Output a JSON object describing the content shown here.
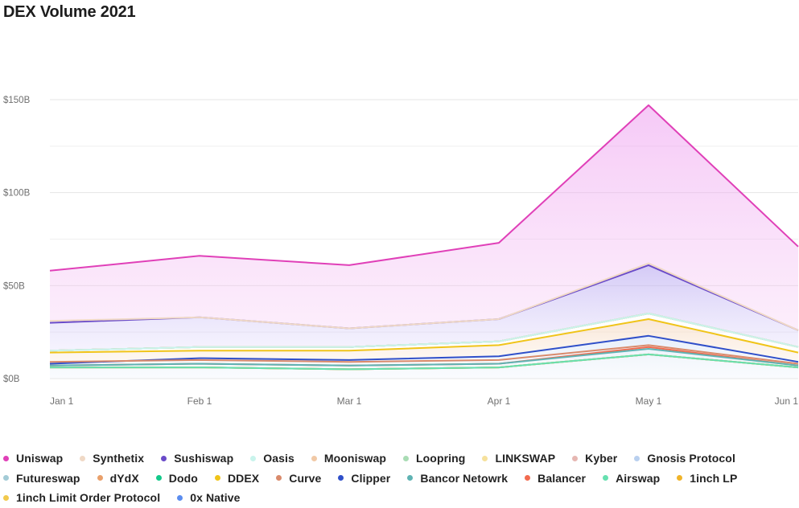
{
  "chart_data": {
    "type": "area",
    "title": "DEX Volume 2021",
    "x": [
      "Jan 1",
      "Feb 1",
      "Mar 1",
      "Apr 1",
      "May 1",
      "Jun 1"
    ],
    "y_ticks": [
      "$150B",
      "$100B",
      "$50B",
      "$0B"
    ],
    "ylim": [
      0,
      150
    ],
    "grid": true,
    "legend_position": "bottom",
    "stack_boundaries_note_values_in_billions": true,
    "series": [
      {
        "name": "Uniswap",
        "color": "#e040b8",
        "values": [
          58,
          66,
          61,
          73,
          147,
          71
        ]
      },
      {
        "name": "Synthetix",
        "color": "#f0d9c6",
        "values": [
          31,
          33,
          27,
          32,
          62,
          26
        ]
      },
      {
        "name": "Sushiswap",
        "color": "#6a4bc9",
        "values": [
          30,
          33,
          27,
          32,
          61,
          26
        ]
      },
      {
        "name": "Oasis",
        "color": "#c9f4ec",
        "values": [
          15,
          17,
          17,
          20,
          35,
          17
        ]
      },
      {
        "name": "Mooniswap",
        "color": "#f1c9a6",
        "values": [
          15,
          17,
          17,
          20,
          35,
          17
        ]
      },
      {
        "name": "Loopring",
        "color": "#a9dcb4",
        "values": [
          15,
          17,
          17,
          20,
          35,
          17
        ]
      },
      {
        "name": "LINKSWAP",
        "color": "#f6e19c",
        "values": [
          15,
          17,
          17,
          20,
          35,
          17
        ]
      },
      {
        "name": "Kyber",
        "color": "#e6b7b2",
        "values": [
          15,
          17,
          17,
          20,
          35,
          17
        ]
      },
      {
        "name": "Gnosis Protocol",
        "color": "#b9d0ef",
        "values": [
          15,
          17,
          17,
          20,
          35,
          17
        ]
      },
      {
        "name": "Futureswap",
        "color": "#a3cbd6",
        "values": [
          15,
          17,
          17,
          20,
          35,
          17
        ]
      },
      {
        "name": "dYdX",
        "color": "#e9a06b",
        "values": [
          15,
          17,
          17,
          20,
          35,
          17
        ]
      },
      {
        "name": "Dodo",
        "color": "#13c98a",
        "values": [
          15,
          17,
          17,
          20,
          35,
          17
        ]
      },
      {
        "name": "DDEX",
        "color": "#f0c419",
        "values": [
          14,
          15,
          15,
          18,
          32,
          14
        ]
      },
      {
        "name": "Curve",
        "color": "#d98a6b",
        "values": [
          9,
          10,
          9,
          10,
          18,
          8
        ]
      },
      {
        "name": "Clipper",
        "color": "#2f4fc9",
        "values": [
          8,
          11,
          10,
          12,
          23,
          9
        ]
      },
      {
        "name": "Bancor Netowrk",
        "color": "#5fb3b3",
        "values": [
          7,
          8,
          7,
          8,
          16,
          7
        ]
      },
      {
        "name": "Balancer",
        "color": "#f26b4f",
        "values": [
          7,
          8,
          7,
          8,
          17,
          7
        ]
      },
      {
        "name": "Airswap",
        "color": "#66e0b0",
        "values": [
          6,
          6,
          5,
          6,
          13,
          6
        ]
      },
      {
        "name": "1inch LP",
        "color": "#f0b429",
        "values": [
          6,
          6,
          5,
          6,
          13,
          6
        ]
      },
      {
        "name": "1inch Limit Order Protocol",
        "color": "#f2c94c",
        "values": [
          6,
          6,
          5,
          6,
          13,
          6
        ]
      },
      {
        "name": "0x Native",
        "color": "#5b8def",
        "values": [
          6,
          6,
          5,
          6,
          13,
          6
        ]
      }
    ]
  },
  "legend_rows": [
    [
      "Uniswap",
      "Synthetix",
      "Sushiswap",
      "Oasis",
      "Mooniswap",
      "Loopring",
      "LINKSWAP",
      "Kyber",
      "Gnosis Protocol"
    ],
    [
      "Futureswap",
      "dYdX",
      "Dodo",
      "DDEX",
      "Curve",
      "Clipper",
      "Bancor Netowrk",
      "Balancer",
      "Airswap",
      "1inch LP"
    ],
    [
      "1inch Limit Order Protocol",
      "0x Native"
    ]
  ]
}
